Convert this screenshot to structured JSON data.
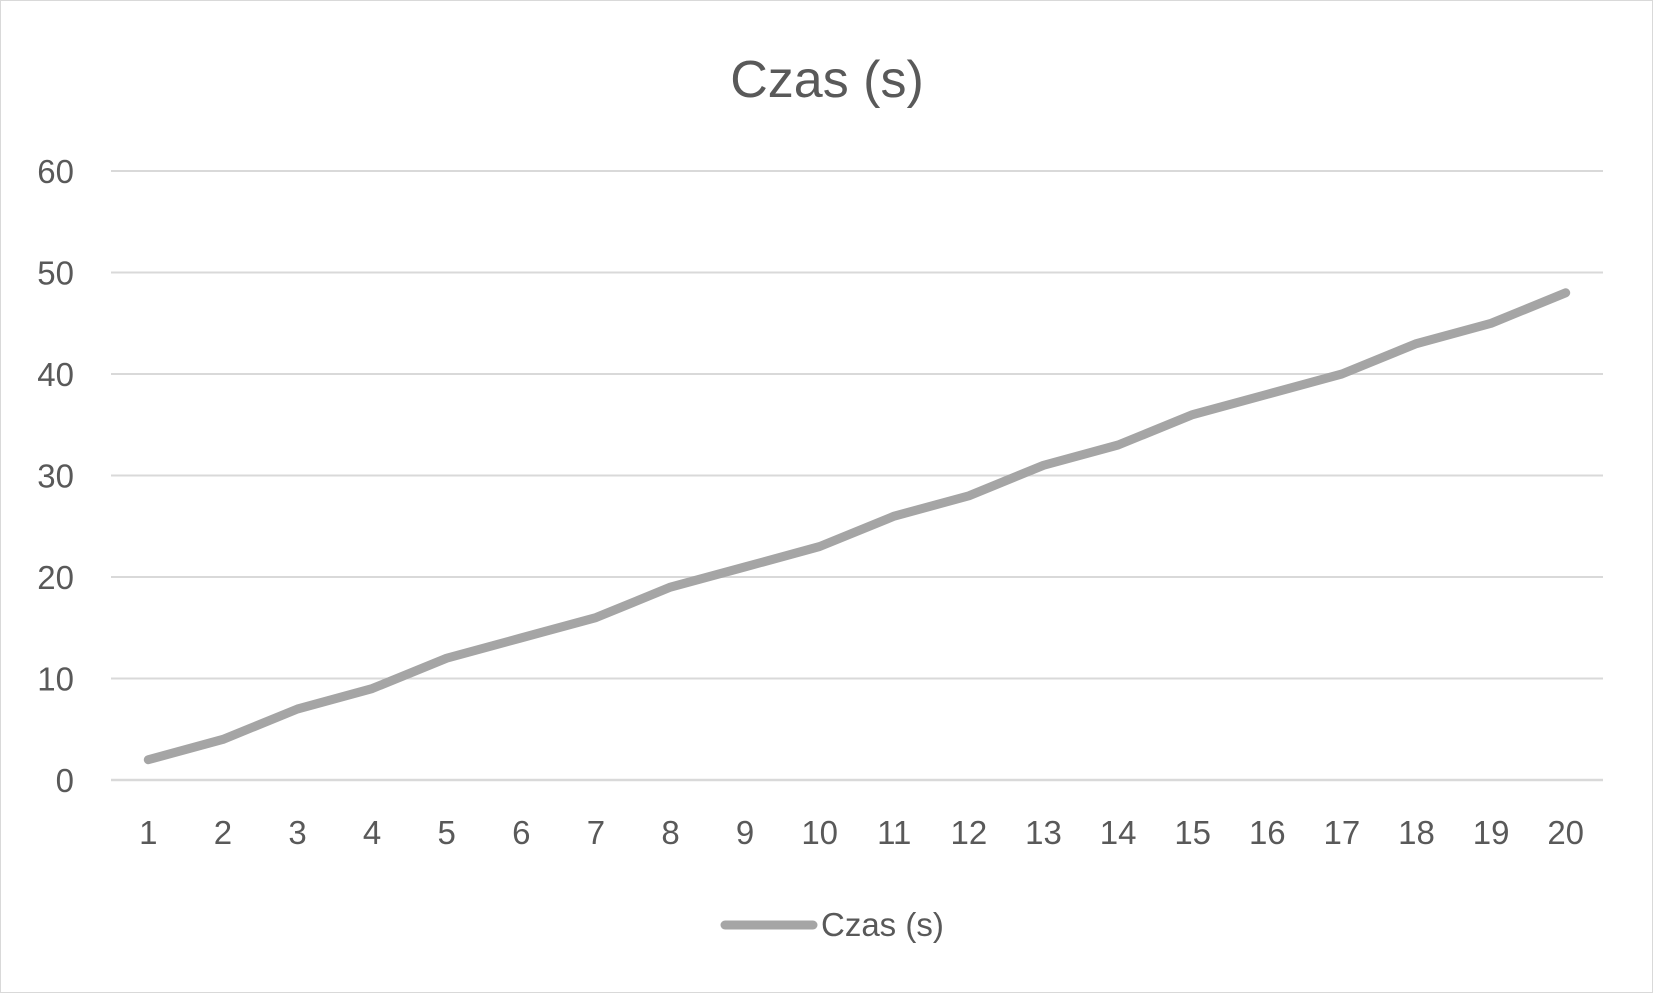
{
  "chart_data": {
    "type": "line",
    "title": "Czas (s)",
    "xlabel": "",
    "ylabel": "",
    "categories": [
      "1",
      "2",
      "3",
      "4",
      "5",
      "6",
      "7",
      "8",
      "9",
      "10",
      "11",
      "12",
      "13",
      "14",
      "15",
      "16",
      "17",
      "18",
      "19",
      "20"
    ],
    "series": [
      {
        "name": "Czas (s)",
        "color": "#a5a5a5",
        "values": [
          2,
          4,
          7,
          9,
          12,
          14,
          16,
          19,
          21,
          23,
          26,
          28,
          31,
          33,
          36,
          38,
          40,
          43,
          45,
          48
        ]
      }
    ],
    "ylim": [
      0,
      60
    ],
    "yticks": [
      0,
      10,
      20,
      30,
      40,
      50,
      60
    ],
    "grid": true,
    "legend_position": "bottom"
  }
}
